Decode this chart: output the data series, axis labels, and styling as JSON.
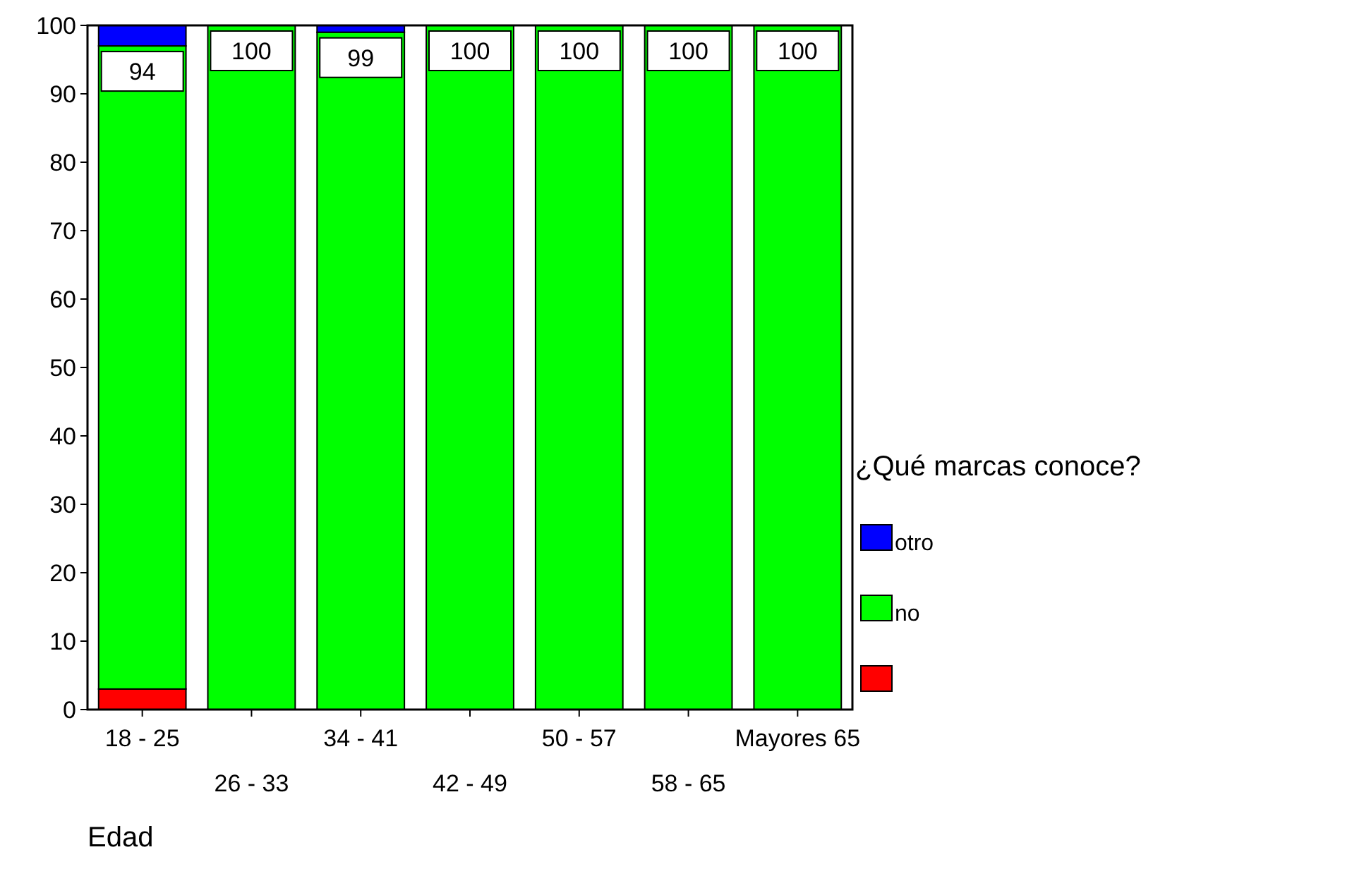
{
  "chart_data": {
    "type": "bar",
    "stacked": true,
    "xlabel": "Edad",
    "legend_title": "¿Qué marcas conoce?",
    "legend": "right",
    "categories": [
      "18 - 25",
      "26 - 33",
      "34 - 41",
      "42 - 49",
      "50 - 57",
      "58 - 65",
      "Mayores 65"
    ],
    "series": [
      {
        "color": "#ff0000",
        "values": [
          3,
          0,
          0,
          0,
          0,
          0,
          0
        ]
      },
      {
        "name": "no",
        "color": "#00ff00",
        "values": [
          94,
          100,
          99,
          100,
          100,
          100,
          100
        ],
        "value_labels": [
          "94",
          "100",
          "99",
          "100",
          "100",
          "100",
          "100"
        ]
      },
      {
        "name": "otro",
        "color": "#0000ff",
        "values": [
          3,
          0,
          1,
          0,
          0,
          0,
          0
        ]
      }
    ],
    "ylim": [
      0,
      100
    ],
    "yticks": [
      0,
      10,
      20,
      30,
      40,
      50,
      60,
      70,
      80,
      90,
      100
    ],
    "grid": false
  }
}
